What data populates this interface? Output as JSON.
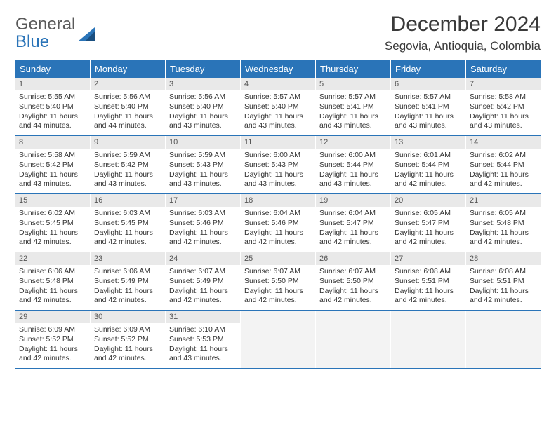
{
  "logo": {
    "line1": "General",
    "line2": "Blue"
  },
  "title": "December 2024",
  "location": "Segovia, Antioquia, Colombia",
  "colors": {
    "header_bg": "#2a74b8",
    "header_text": "#ffffff",
    "daynum_bg": "#e9e9e9",
    "border": "#2a74b8",
    "text": "#333333"
  },
  "day_names": [
    "Sunday",
    "Monday",
    "Tuesday",
    "Wednesday",
    "Thursday",
    "Friday",
    "Saturday"
  ],
  "cell_labels": {
    "sunrise": "Sunrise:",
    "sunset": "Sunset:",
    "daylight": "Daylight:"
  },
  "weeks": [
    [
      {
        "n": 1,
        "sr": "5:55 AM",
        "ss": "5:40 PM",
        "dl": "11 hours and 44 minutes."
      },
      {
        "n": 2,
        "sr": "5:56 AM",
        "ss": "5:40 PM",
        "dl": "11 hours and 44 minutes."
      },
      {
        "n": 3,
        "sr": "5:56 AM",
        "ss": "5:40 PM",
        "dl": "11 hours and 43 minutes."
      },
      {
        "n": 4,
        "sr": "5:57 AM",
        "ss": "5:40 PM",
        "dl": "11 hours and 43 minutes."
      },
      {
        "n": 5,
        "sr": "5:57 AM",
        "ss": "5:41 PM",
        "dl": "11 hours and 43 minutes."
      },
      {
        "n": 6,
        "sr": "5:57 AM",
        "ss": "5:41 PM",
        "dl": "11 hours and 43 minutes."
      },
      {
        "n": 7,
        "sr": "5:58 AM",
        "ss": "5:42 PM",
        "dl": "11 hours and 43 minutes."
      }
    ],
    [
      {
        "n": 8,
        "sr": "5:58 AM",
        "ss": "5:42 PM",
        "dl": "11 hours and 43 minutes."
      },
      {
        "n": 9,
        "sr": "5:59 AM",
        "ss": "5:42 PM",
        "dl": "11 hours and 43 minutes."
      },
      {
        "n": 10,
        "sr": "5:59 AM",
        "ss": "5:43 PM",
        "dl": "11 hours and 43 minutes."
      },
      {
        "n": 11,
        "sr": "6:00 AM",
        "ss": "5:43 PM",
        "dl": "11 hours and 43 minutes."
      },
      {
        "n": 12,
        "sr": "6:00 AM",
        "ss": "5:44 PM",
        "dl": "11 hours and 43 minutes."
      },
      {
        "n": 13,
        "sr": "6:01 AM",
        "ss": "5:44 PM",
        "dl": "11 hours and 42 minutes."
      },
      {
        "n": 14,
        "sr": "6:02 AM",
        "ss": "5:44 PM",
        "dl": "11 hours and 42 minutes."
      }
    ],
    [
      {
        "n": 15,
        "sr": "6:02 AM",
        "ss": "5:45 PM",
        "dl": "11 hours and 42 minutes."
      },
      {
        "n": 16,
        "sr": "6:03 AM",
        "ss": "5:45 PM",
        "dl": "11 hours and 42 minutes."
      },
      {
        "n": 17,
        "sr": "6:03 AM",
        "ss": "5:46 PM",
        "dl": "11 hours and 42 minutes."
      },
      {
        "n": 18,
        "sr": "6:04 AM",
        "ss": "5:46 PM",
        "dl": "11 hours and 42 minutes."
      },
      {
        "n": 19,
        "sr": "6:04 AM",
        "ss": "5:47 PM",
        "dl": "11 hours and 42 minutes."
      },
      {
        "n": 20,
        "sr": "6:05 AM",
        "ss": "5:47 PM",
        "dl": "11 hours and 42 minutes."
      },
      {
        "n": 21,
        "sr": "6:05 AM",
        "ss": "5:48 PM",
        "dl": "11 hours and 42 minutes."
      }
    ],
    [
      {
        "n": 22,
        "sr": "6:06 AM",
        "ss": "5:48 PM",
        "dl": "11 hours and 42 minutes."
      },
      {
        "n": 23,
        "sr": "6:06 AM",
        "ss": "5:49 PM",
        "dl": "11 hours and 42 minutes."
      },
      {
        "n": 24,
        "sr": "6:07 AM",
        "ss": "5:49 PM",
        "dl": "11 hours and 42 minutes."
      },
      {
        "n": 25,
        "sr": "6:07 AM",
        "ss": "5:50 PM",
        "dl": "11 hours and 42 minutes."
      },
      {
        "n": 26,
        "sr": "6:07 AM",
        "ss": "5:50 PM",
        "dl": "11 hours and 42 minutes."
      },
      {
        "n": 27,
        "sr": "6:08 AM",
        "ss": "5:51 PM",
        "dl": "11 hours and 42 minutes."
      },
      {
        "n": 28,
        "sr": "6:08 AM",
        "ss": "5:51 PM",
        "dl": "11 hours and 42 minutes."
      }
    ],
    [
      {
        "n": 29,
        "sr": "6:09 AM",
        "ss": "5:52 PM",
        "dl": "11 hours and 42 minutes."
      },
      {
        "n": 30,
        "sr": "6:09 AM",
        "ss": "5:52 PM",
        "dl": "11 hours and 42 minutes."
      },
      {
        "n": 31,
        "sr": "6:10 AM",
        "ss": "5:53 PM",
        "dl": "11 hours and 43 minutes."
      },
      null,
      null,
      null,
      null
    ]
  ]
}
